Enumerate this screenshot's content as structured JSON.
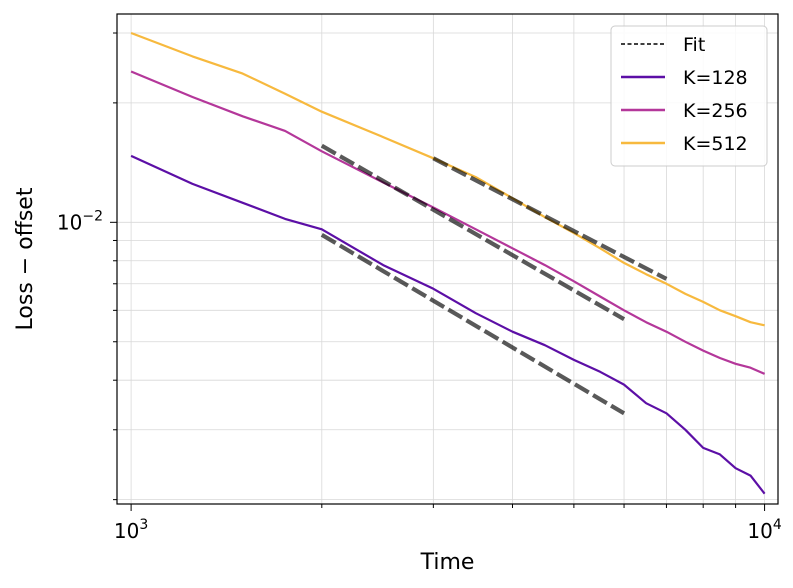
{
  "chart_data": {
    "type": "line",
    "title": "",
    "xlabel": "Time",
    "ylabel": "Loss − offset",
    "xscale": "log",
    "yscale": "log",
    "xlim": [
      950,
      10500
    ],
    "ylim": [
      0.00195,
      0.0335
    ],
    "xticks": [
      {
        "value": 1000,
        "base": "10",
        "exp": "3"
      },
      {
        "value": 10000,
        "base": "10",
        "exp": "4"
      }
    ],
    "yticks": [
      {
        "value": 0.01,
        "base": "10",
        "exp": "−2"
      }
    ],
    "grid": true,
    "legend_position": "top-right",
    "fit_label": "Fit",
    "series": [
      {
        "name": "K=128",
        "color": "#5c0fa6",
        "x": [
          1000,
          1250,
          1500,
          1750,
          2000,
          2500,
          3000,
          3500,
          4000,
          4500,
          5000,
          5500,
          6000,
          6500,
          7000,
          7500,
          8000,
          8500,
          9000,
          9500,
          10000
        ],
        "y": [
          0.0147,
          0.0125,
          0.0112,
          0.0102,
          0.0096,
          0.0078,
          0.0068,
          0.0059,
          0.0053,
          0.0049,
          0.0045,
          0.0042,
          0.0039,
          0.0035,
          0.0033,
          0.003,
          0.0027,
          0.0026,
          0.0024,
          0.0023,
          0.00207
        ]
      },
      {
        "name": "K=256",
        "color": "#b4379a",
        "x": [
          1000,
          1250,
          1500,
          1750,
          2000,
          2500,
          3000,
          3500,
          4000,
          4500,
          5000,
          5500,
          6000,
          6500,
          7000,
          7500,
          8000,
          8500,
          9000,
          9500,
          10000
        ],
        "y": [
          0.024,
          0.0207,
          0.0185,
          0.017,
          0.0151,
          0.0126,
          0.0109,
          0.0096,
          0.0086,
          0.0078,
          0.0071,
          0.0065,
          0.006,
          0.0056,
          0.0053,
          0.005,
          0.00475,
          0.00455,
          0.0044,
          0.0043,
          0.00415
        ]
      },
      {
        "name": "K=512",
        "color": "#f7b93e",
        "x": [
          1000,
          1250,
          1500,
          1750,
          2000,
          2500,
          3000,
          3500,
          4000,
          4500,
          5000,
          5500,
          6000,
          6500,
          7000,
          7500,
          8000,
          8500,
          9000,
          9500,
          10000
        ],
        "y": [
          0.03,
          0.0262,
          0.0237,
          0.0211,
          0.019,
          0.0164,
          0.0145,
          0.013,
          0.0115,
          0.0103,
          0.0094,
          0.0086,
          0.0079,
          0.0074,
          0.007,
          0.0066,
          0.0063,
          0.006,
          0.0058,
          0.0056,
          0.0055
        ]
      }
    ],
    "fits": [
      {
        "series": "K=128",
        "x": [
          2000,
          6000
        ],
        "y": [
          0.0093,
          0.0033
        ]
      },
      {
        "series": "K=256",
        "x": [
          2000,
          6000
        ],
        "y": [
          0.0156,
          0.0057
        ]
      },
      {
        "series": "K=512",
        "x": [
          3000,
          7000
        ],
        "y": [
          0.0145,
          0.0072
        ]
      }
    ]
  }
}
